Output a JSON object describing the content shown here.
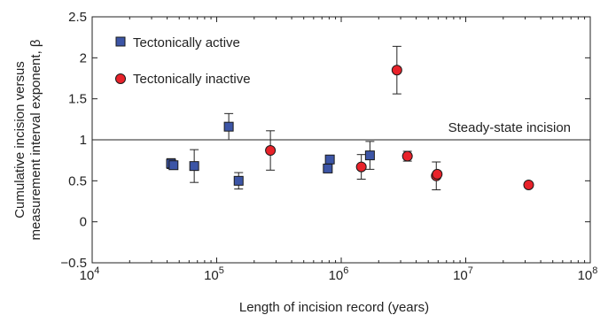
{
  "chart_data": {
    "type": "scatter",
    "xlabel": "Length of incision record (years)",
    "ylabel_line1": "Cumulative incision versus",
    "ylabel_line2": "measurement interval exponent, β",
    "x_scale": "log",
    "xlim": [
      10000,
      100000000
    ],
    "ylim": [
      -0.5,
      2.5
    ],
    "x_ticks": [
      10000,
      100000,
      1000000,
      10000000,
      100000000
    ],
    "x_tick_labels": [
      {
        "base": "10",
        "exp": "4"
      },
      {
        "base": "10",
        "exp": "5"
      },
      {
        "base": "10",
        "exp": "6"
      },
      {
        "base": "10",
        "exp": "7"
      },
      {
        "base": "10",
        "exp": "8"
      }
    ],
    "y_ticks": [
      -0.5,
      0,
      0.5,
      1,
      1.5,
      2,
      2.5
    ],
    "y_tick_labels": [
      "−0.5",
      "0",
      "0.5",
      "1",
      "1.5",
      "2",
      "2.5"
    ],
    "grid": false,
    "legend_position": "top-left",
    "reference_line": {
      "y": 1,
      "label": "Steady-state incision"
    },
    "series": [
      {
        "name": "Tectonically active",
        "marker": "square",
        "color": "#3c55a6",
        "points": [
          {
            "x": 43000,
            "y": 0.71,
            "err": 0.06
          },
          {
            "x": 45000,
            "y": 0.69,
            "err": 0.0
          },
          {
            "x": 66000,
            "y": 0.68,
            "err": 0.2
          },
          {
            "x": 125000,
            "y": 1.16,
            "err": 0.16
          },
          {
            "x": 150000,
            "y": 0.5,
            "err": 0.1
          },
          {
            "x": 780000,
            "y": 0.65,
            "err": 0.0
          },
          {
            "x": 810000,
            "y": 0.76,
            "err": 0.0
          },
          {
            "x": 1700000,
            "y": 0.81,
            "err": 0.17
          }
        ]
      },
      {
        "name": "Tectonically inactive",
        "marker": "circle",
        "color": "#e8222a",
        "points": [
          {
            "x": 270000,
            "y": 0.87,
            "err": 0.24
          },
          {
            "x": 1450000,
            "y": 0.67,
            "err": 0.15
          },
          {
            "x": 2800000,
            "y": 1.85,
            "err": 0.29
          },
          {
            "x": 3400000,
            "y": 0.8,
            "err": 0.06
          },
          {
            "x": 5800000,
            "y": 0.56,
            "err": 0.17
          },
          {
            "x": 5900000,
            "y": 0.58,
            "err": 0.0
          },
          {
            "x": 32000000,
            "y": 0.45,
            "err": 0.0
          }
        ]
      }
    ]
  }
}
